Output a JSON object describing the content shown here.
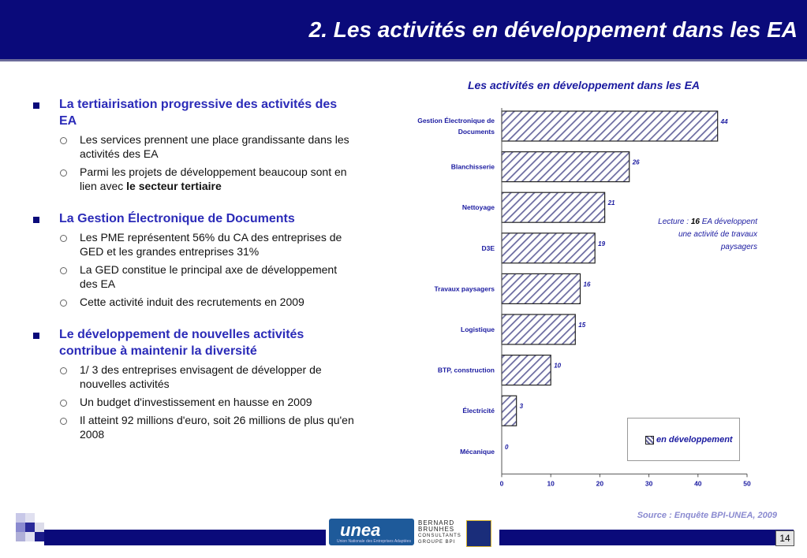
{
  "header": {
    "title": "2. Les activités en développement dans les EA"
  },
  "sections": [
    {
      "title": "La tertiairisation progressive des activités des EA",
      "bullets": [
        {
          "text": "Les services prennent une place grandissante dans les activités des EA"
        },
        {
          "text": "Parmi les projets de développement beaucoup sont en lien avec ",
          "bold": "le secteur tertiaire"
        }
      ]
    },
    {
      "title": "La Gestion Électronique de Documents",
      "bullets": [
        {
          "text": "Les PME représentent 56% du CA des entreprises de GED et les grandes entreprises 31%"
        },
        {
          "text": "La GED constitue le principal axe de développement des EA"
        },
        {
          "text": "Cette activité induit des recrutements en 2009"
        }
      ]
    },
    {
      "title": "Le développement de nouvelles activités contribue à maintenir la diversité",
      "bullets": [
        {
          "text": "1/ 3 des entreprises envisagent de développer de nouvelles activités"
        },
        {
          "text": "Un budget d'investissement en hausse en 2009"
        },
        {
          "text": "Il atteint 92 millions d'euro, soit 26 millions de plus qu'en 2008"
        }
      ]
    }
  ],
  "chart_data": {
    "type": "bar",
    "orientation": "horizontal",
    "title": "Les activités en développement dans les EA",
    "categories": [
      "Gestion Électronique de Documents",
      "Blanchisserie",
      "Nettoyage",
      "D3E",
      "Travaux paysagers",
      "Logistique",
      "BTP, construction",
      "Électricité",
      "Mécanique"
    ],
    "series": [
      {
        "name": "en développement",
        "values": [
          44,
          26,
          21,
          19,
          16,
          15,
          10,
          3,
          0
        ]
      }
    ],
    "xlim": [
      0,
      50
    ],
    "xticks": [
      "0",
      "10",
      "20",
      "30",
      "40",
      "50"
    ],
    "grid": false,
    "legend_position": "bottom-right",
    "bar_color": "#6b6ba0",
    "note": {
      "prefix": "Lecture : ",
      "value": "16",
      "line1": " EA développent",
      "line2": "une activité de travaux",
      "line3": "paysagers"
    }
  },
  "source": "Source : Enquête BPI-UNEA, 2009",
  "footer": {
    "unea_logo": "unea",
    "unea_subtitle": "Union Nationale des Entreprises Adaptées",
    "bb_lines": [
      "BERNARD",
      "BRUNHES",
      "CONSULTANTS",
      "GROUPE BPI"
    ],
    "page_number": "14"
  },
  "colors": {
    "header_bg": "#0a0a7a",
    "accent_text": "#2b2bb8",
    "chart_text": "#1a1aa0",
    "source_text": "#8a8ad0"
  }
}
